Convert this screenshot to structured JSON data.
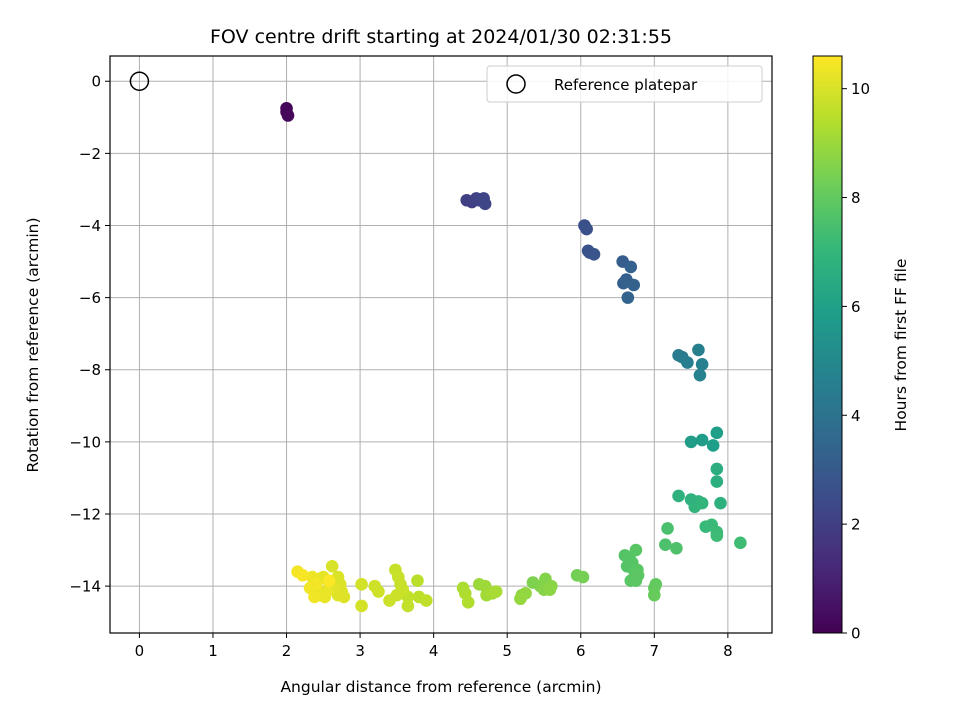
{
  "chart_data": {
    "type": "scatter",
    "title": "FOV centre drift starting at 2024/01/30 02:31:55",
    "xlabel": "Angular distance from reference (arcmin)",
    "ylabel": "Rotation from reference (arcmin)",
    "xlim": [
      -0.4,
      8.6
    ],
    "ylim": [
      -15.3,
      0.7
    ],
    "xticks": [
      0,
      1,
      2,
      3,
      4,
      5,
      6,
      7,
      8
    ],
    "yticks": [
      0,
      -2,
      -4,
      -6,
      -8,
      -10,
      -12,
      -14
    ],
    "grid": true,
    "legend": {
      "placement": "upper-right",
      "entries": [
        "Reference platepar"
      ]
    },
    "reference_point": {
      "x": 0,
      "y": 0,
      "label": "Reference platepar"
    },
    "colorbar": {
      "label": "Hours from first FF file",
      "range": [
        0,
        10.6
      ],
      "ticks": [
        0,
        2,
        4,
        6,
        8,
        10
      ],
      "colormap": "viridis"
    },
    "points": [
      {
        "x": 2.0,
        "y": -0.75,
        "h": 0.1
      },
      {
        "x": 2.0,
        "y": -0.85,
        "h": 0.15
      },
      {
        "x": 2.02,
        "y": -0.95,
        "h": 0.2
      },
      {
        "x": 4.45,
        "y": -3.3,
        "h": 2.0
      },
      {
        "x": 4.52,
        "y": -3.35,
        "h": 2.05
      },
      {
        "x": 4.58,
        "y": -3.25,
        "h": 2.1
      },
      {
        "x": 4.62,
        "y": -3.3,
        "h": 2.15
      },
      {
        "x": 4.68,
        "y": -3.25,
        "h": 2.2
      },
      {
        "x": 4.7,
        "y": -3.4,
        "h": 2.25
      },
      {
        "x": 6.05,
        "y": -4.0,
        "h": 2.6
      },
      {
        "x": 6.08,
        "y": -4.1,
        "h": 2.65
      },
      {
        "x": 6.1,
        "y": -4.7,
        "h": 2.7
      },
      {
        "x": 6.12,
        "y": -4.75,
        "h": 2.75
      },
      {
        "x": 6.18,
        "y": -4.8,
        "h": 2.8
      },
      {
        "x": 6.57,
        "y": -5.0,
        "h": 3.1
      },
      {
        "x": 6.62,
        "y": -5.5,
        "h": 3.15
      },
      {
        "x": 6.58,
        "y": -5.6,
        "h": 3.2
      },
      {
        "x": 6.68,
        "y": -5.15,
        "h": 3.25
      },
      {
        "x": 6.72,
        "y": -5.65,
        "h": 3.3
      },
      {
        "x": 6.64,
        "y": -6.0,
        "h": 3.35
      },
      {
        "x": 7.33,
        "y": -7.6,
        "h": 4.4
      },
      {
        "x": 7.38,
        "y": -7.65,
        "h": 4.45
      },
      {
        "x": 7.45,
        "y": -7.8,
        "h": 4.5
      },
      {
        "x": 7.6,
        "y": -7.45,
        "h": 4.55
      },
      {
        "x": 7.65,
        "y": -7.85,
        "h": 4.6
      },
      {
        "x": 7.62,
        "y": -8.15,
        "h": 4.65
      },
      {
        "x": 7.5,
        "y": -10.0,
        "h": 5.8
      },
      {
        "x": 7.65,
        "y": -9.95,
        "h": 5.85
      },
      {
        "x": 7.8,
        "y": -10.1,
        "h": 5.9
      },
      {
        "x": 7.85,
        "y": -9.75,
        "h": 5.95
      },
      {
        "x": 7.85,
        "y": -10.75,
        "h": 6.6
      },
      {
        "x": 7.85,
        "y": -11.1,
        "h": 6.65
      },
      {
        "x": 7.9,
        "y": -11.7,
        "h": 6.7
      },
      {
        "x": 7.33,
        "y": -11.5,
        "h": 6.75
      },
      {
        "x": 7.5,
        "y": -11.6,
        "h": 6.8
      },
      {
        "x": 7.6,
        "y": -11.65,
        "h": 6.85
      },
      {
        "x": 7.55,
        "y": -11.8,
        "h": 6.9
      },
      {
        "x": 7.65,
        "y": -11.7,
        "h": 6.95
      },
      {
        "x": 7.7,
        "y": -12.35,
        "h": 7.1
      },
      {
        "x": 7.78,
        "y": -12.3,
        "h": 7.15
      },
      {
        "x": 7.85,
        "y": -12.5,
        "h": 7.2
      },
      {
        "x": 7.85,
        "y": -12.6,
        "h": 7.25
      },
      {
        "x": 8.17,
        "y": -12.8,
        "h": 7.3
      },
      {
        "x": 7.18,
        "y": -12.4,
        "h": 7.5
      },
      {
        "x": 7.15,
        "y": -12.85,
        "h": 7.55
      },
      {
        "x": 7.3,
        "y": -12.95,
        "h": 7.6
      },
      {
        "x": 6.6,
        "y": -13.15,
        "h": 7.7
      },
      {
        "x": 6.66,
        "y": -13.2,
        "h": 7.72
      },
      {
        "x": 6.7,
        "y": -13.35,
        "h": 7.74
      },
      {
        "x": 6.63,
        "y": -13.45,
        "h": 7.76
      },
      {
        "x": 6.72,
        "y": -13.55,
        "h": 7.78
      },
      {
        "x": 6.75,
        "y": -13.0,
        "h": 7.8
      },
      {
        "x": 6.77,
        "y": -13.55,
        "h": 7.82
      },
      {
        "x": 6.68,
        "y": -13.85,
        "h": 7.84
      },
      {
        "x": 6.75,
        "y": -13.85,
        "h": 7.86
      },
      {
        "x": 6.78,
        "y": -13.7,
        "h": 7.88
      },
      {
        "x": 7.02,
        "y": -13.95,
        "h": 8.0
      },
      {
        "x": 7.0,
        "y": -14.05,
        "h": 8.05
      },
      {
        "x": 7.0,
        "y": -14.25,
        "h": 8.1
      },
      {
        "x": 5.95,
        "y": -13.7,
        "h": 8.3
      },
      {
        "x": 6.03,
        "y": -13.75,
        "h": 8.35
      },
      {
        "x": 5.35,
        "y": -13.9,
        "h": 8.5
      },
      {
        "x": 5.45,
        "y": -14.0,
        "h": 8.55
      },
      {
        "x": 5.52,
        "y": -13.8,
        "h": 8.6
      },
      {
        "x": 5.5,
        "y": -14.1,
        "h": 8.65
      },
      {
        "x": 5.6,
        "y": -14.0,
        "h": 8.7
      },
      {
        "x": 5.58,
        "y": -14.1,
        "h": 8.75
      },
      {
        "x": 5.2,
        "y": -14.25,
        "h": 8.8
      },
      {
        "x": 5.25,
        "y": -14.2,
        "h": 8.85
      },
      {
        "x": 5.18,
        "y": -14.35,
        "h": 8.9
      },
      {
        "x": 4.62,
        "y": -13.95,
        "h": 9.0
      },
      {
        "x": 4.7,
        "y": -14.0,
        "h": 9.05
      },
      {
        "x": 4.72,
        "y": -14.25,
        "h": 9.1
      },
      {
        "x": 4.8,
        "y": -14.2,
        "h": 9.15
      },
      {
        "x": 4.85,
        "y": -14.15,
        "h": 9.2
      },
      {
        "x": 4.4,
        "y": -14.05,
        "h": 9.25
      },
      {
        "x": 4.43,
        "y": -14.2,
        "h": 9.3
      },
      {
        "x": 4.47,
        "y": -14.45,
        "h": 9.35
      },
      {
        "x": 3.78,
        "y": -13.85,
        "h": 9.5
      },
      {
        "x": 3.8,
        "y": -14.3,
        "h": 9.55
      },
      {
        "x": 3.9,
        "y": -14.4,
        "h": 9.6
      },
      {
        "x": 3.65,
        "y": -14.3,
        "h": 9.62
      },
      {
        "x": 3.65,
        "y": -14.55,
        "h": 9.65
      },
      {
        "x": 3.48,
        "y": -13.55,
        "h": 9.7
      },
      {
        "x": 3.52,
        "y": -13.75,
        "h": 9.72
      },
      {
        "x": 3.55,
        "y": -13.95,
        "h": 9.74
      },
      {
        "x": 3.58,
        "y": -14.1,
        "h": 9.76
      },
      {
        "x": 3.5,
        "y": -14.25,
        "h": 9.78
      },
      {
        "x": 3.4,
        "y": -14.4,
        "h": 9.8
      },
      {
        "x": 3.25,
        "y": -14.15,
        "h": 9.82
      },
      {
        "x": 3.2,
        "y": -14.0,
        "h": 9.84
      },
      {
        "x": 3.02,
        "y": -13.95,
        "h": 9.9
      },
      {
        "x": 3.02,
        "y": -14.55,
        "h": 9.92
      },
      {
        "x": 2.62,
        "y": -13.45,
        "h": 10.0
      },
      {
        "x": 2.7,
        "y": -13.75,
        "h": 10.02
      },
      {
        "x": 2.73,
        "y": -13.95,
        "h": 10.04
      },
      {
        "x": 2.75,
        "y": -14.15,
        "h": 10.06
      },
      {
        "x": 2.78,
        "y": -14.3,
        "h": 10.08
      },
      {
        "x": 2.7,
        "y": -14.25,
        "h": 10.1
      },
      {
        "x": 2.65,
        "y": -14.05,
        "h": 10.12
      },
      {
        "x": 2.58,
        "y": -13.9,
        "h": 10.14
      },
      {
        "x": 2.5,
        "y": -13.75,
        "h": 10.2
      },
      {
        "x": 2.45,
        "y": -13.8,
        "h": 10.22
      },
      {
        "x": 2.42,
        "y": -14.1,
        "h": 10.24
      },
      {
        "x": 2.45,
        "y": -14.25,
        "h": 10.26
      },
      {
        "x": 2.52,
        "y": -14.3,
        "h": 10.28
      },
      {
        "x": 2.55,
        "y": -14.15,
        "h": 10.3
      },
      {
        "x": 2.35,
        "y": -13.75,
        "h": 10.35
      },
      {
        "x": 2.32,
        "y": -14.05,
        "h": 10.38
      },
      {
        "x": 2.38,
        "y": -14.3,
        "h": 10.4
      },
      {
        "x": 2.4,
        "y": -13.95,
        "h": 10.42
      },
      {
        "x": 2.15,
        "y": -13.6,
        "h": 10.45
      },
      {
        "x": 2.22,
        "y": -13.7,
        "h": 10.5
      },
      {
        "x": 2.58,
        "y": -13.85,
        "h": 10.55
      }
    ]
  }
}
